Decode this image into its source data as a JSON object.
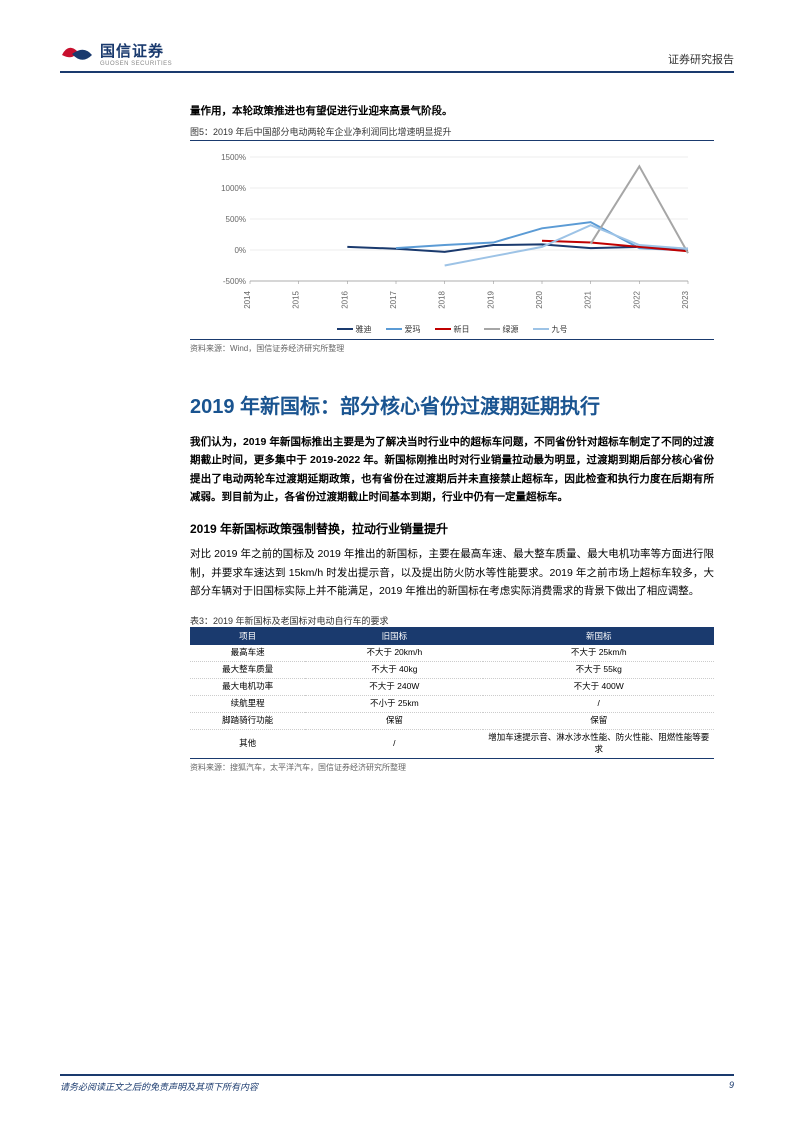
{
  "header": {
    "logo_cn": "国信证券",
    "logo_en": "GUOSEN SECURITIES",
    "right": "证券研究报告"
  },
  "intro_line": "量作用，本轮政策推进也有望促进行业迎来高景气阶段。",
  "figure": {
    "title": "图5：2019 年后中国部分电动两轮车企业净利润同比增速明显提升",
    "source": "资料来源：Wind，国信证券经济研究所整理",
    "type": "line",
    "ylim": [
      -500,
      1500
    ],
    "ytick_step": 500,
    "ytick_format_pct": true,
    "x_labels": [
      "2014",
      "2015",
      "2016",
      "2017",
      "2018",
      "2019",
      "2020",
      "2021",
      "2022",
      "2023"
    ],
    "colors": {
      "bg": "#ffffff",
      "grid": "#d9d9d9",
      "axis": "#999999"
    },
    "series": [
      {
        "name": "雅迪",
        "color": "#1a3a6e",
        "width": 2,
        "data": [
          null,
          null,
          50,
          20,
          -30,
          80,
          90,
          30,
          50,
          20
        ]
      },
      {
        "name": "爱玛",
        "color": "#5b9bd5",
        "width": 2,
        "data": [
          null,
          null,
          null,
          30,
          80,
          120,
          350,
          450,
          30,
          -10
        ]
      },
      {
        "name": "新日",
        "color": "#c00000",
        "width": 2,
        "data": [
          null,
          null,
          null,
          null,
          null,
          null,
          150,
          120,
          50,
          -20
        ]
      },
      {
        "name": "绿源",
        "color": "#a6a6a6",
        "width": 2,
        "data": [
          null,
          null,
          null,
          null,
          null,
          null,
          null,
          100,
          1350,
          -50
        ]
      },
      {
        "name": "九号",
        "color": "#9dc3e6",
        "width": 2,
        "data": [
          null,
          null,
          null,
          null,
          -250,
          -100,
          50,
          400,
          80,
          20
        ]
      }
    ]
  },
  "section": {
    "h1": "2019 年新国标：部分核心省份过渡期延期执行",
    "p1": "我们认为，2019 年新国标推出主要是为了解决当时行业中的超标车问题，不同省份针对超标车制定了不同的过渡期截止时间，更多集中于 2019-2022 年。新国标刚推出时对行业销量拉动最为明显，过渡期到期后部分核心省份提出了电动两轮车过渡期延期政策，也有省份在过渡期后并未直接禁止超标车，因此检查和执行力度在后期有所减弱。到目前为止，各省份过渡期截止时间基本到期，行业中仍有一定量超标车。",
    "h2": "2019 年新国标政策强制替换，拉动行业销量提升",
    "p2": "对比 2019 年之前的国标及 2019 年推出的新国标，主要在最高车速、最大整车质量、最大电机功率等方面进行限制，并要求车速达到 15km/h 时发出提示音，以及提出防火防水等性能要求。2019 年之前市场上超标车较多，大部分车辆对于旧国标实际上并不能满足，2019 年推出的新国标在考虑实际消费需求的背景下做出了相应调整。"
  },
  "table": {
    "title": "表3：2019 年新国标及老国标对电动自行车的要求",
    "columns": [
      "项目",
      "旧国标",
      "新国标"
    ],
    "rows": [
      [
        "最高车速",
        "不大于 20km/h",
        "不大于 25km/h"
      ],
      [
        "最大整车质量",
        "不大于 40kg",
        "不大于 55kg"
      ],
      [
        "最大电机功率",
        "不大于 240W",
        "不大于 400W"
      ],
      [
        "续航里程",
        "不小于 25km",
        "/"
      ],
      [
        "脚踏骑行功能",
        "保留",
        "保留"
      ],
      [
        "其他",
        "/",
        "增加车速提示音、淋水涉水性能、防火性能、阻燃性能等要求"
      ]
    ],
    "source": "资料来源：搜狐汽车，太平洋汽车，国信证券经济研究所整理",
    "header_bg": "#1a3a6e",
    "header_fg": "#ffffff",
    "col_widths": [
      "22%",
      "34%",
      "44%"
    ]
  },
  "footer": {
    "left": "请务必阅读正文之后的免责声明及其项下所有内容",
    "page": "9"
  }
}
